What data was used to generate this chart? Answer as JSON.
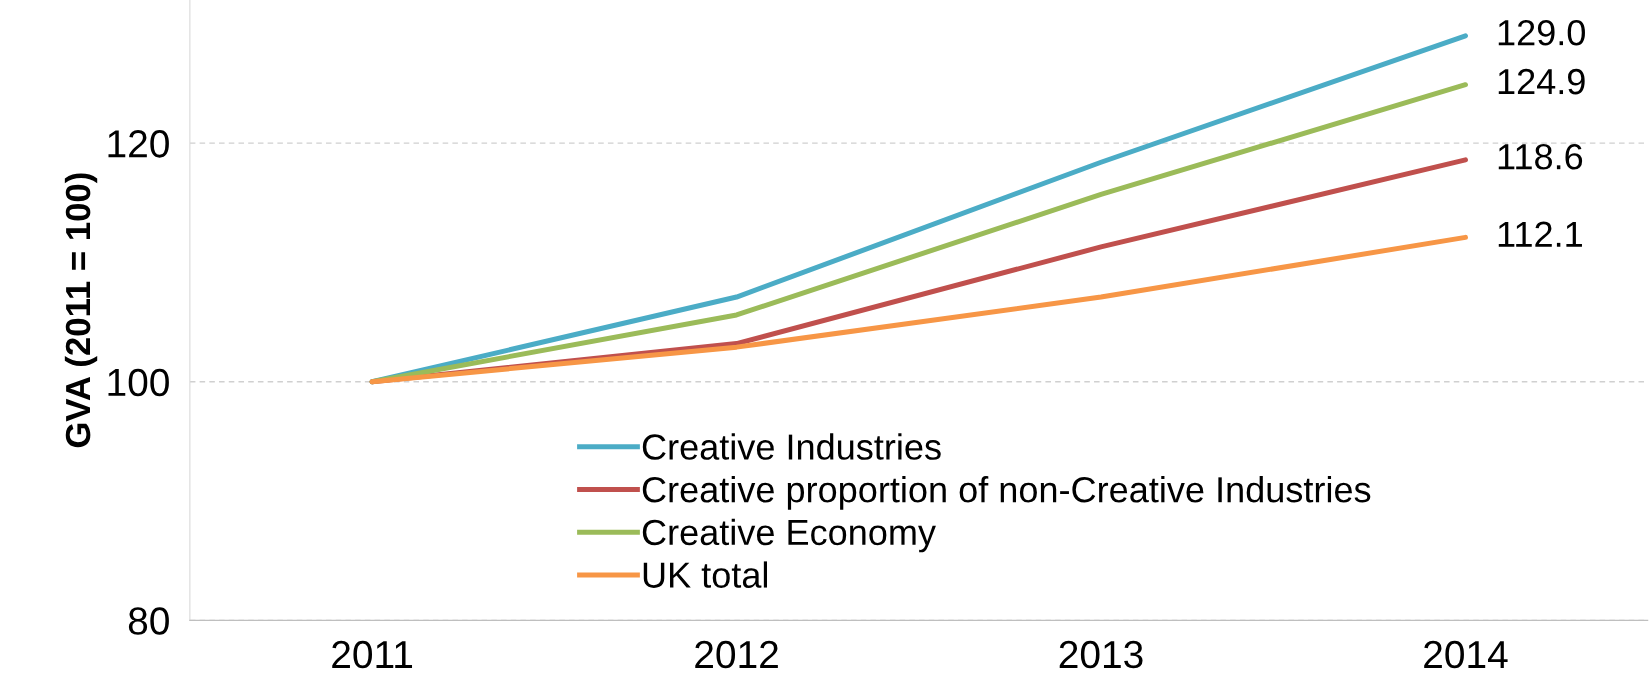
{
  "chart_data": {
    "type": "line",
    "ylabel": "GVA (2011 = 100)",
    "categories": [
      "2011",
      "2012",
      "2013",
      "2014"
    ],
    "series": [
      {
        "name": "Creative Industries",
        "color": "#4bacc6",
        "values": [
          100,
          107.1,
          118.4,
          129.0
        ],
        "value_labels": [
          null,
          null,
          null,
          "129.0"
        ]
      },
      {
        "name": "Creative proportion of non-Creative Industries",
        "color": "#c0504d",
        "values": [
          100,
          103.2,
          111.3,
          118.6
        ],
        "value_labels": [
          null,
          null,
          null,
          "118.6"
        ]
      },
      {
        "name": "Creative Economy",
        "color": "#9bbb59",
        "values": [
          100,
          105.6,
          115.7,
          124.9
        ],
        "value_labels": [
          null,
          null,
          null,
          "124.9"
        ]
      },
      {
        "name": "UK total",
        "color": "#f79646",
        "values": [
          100,
          102.9,
          107.1,
          112.1
        ],
        "value_labels": [
          null,
          null,
          null,
          "112.1"
        ]
      }
    ],
    "ylim": [
      80,
      132
    ],
    "yticks": [
      80,
      100,
      120
    ],
    "grid": "y",
    "legend": "bottom",
    "marker": "none",
    "line_style": "solid"
  }
}
